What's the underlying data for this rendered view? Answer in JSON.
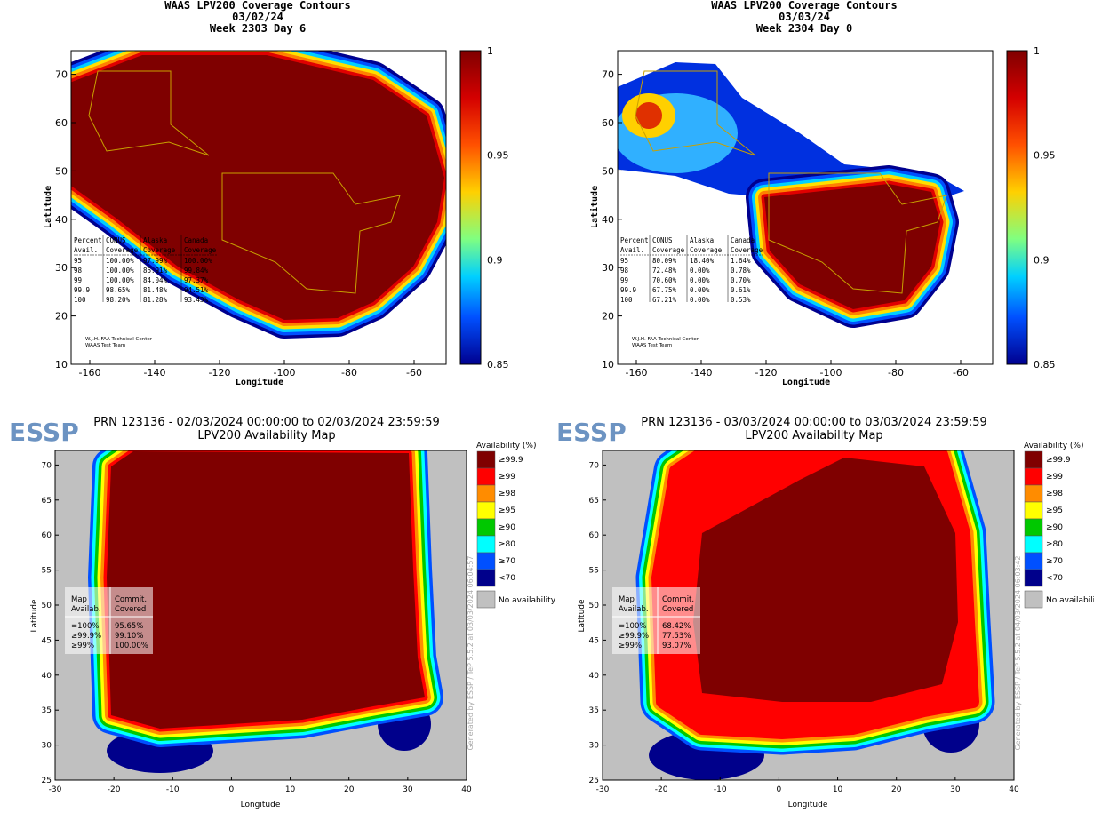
{
  "waas_panels": [
    {
      "title": [
        "WAAS LPV200 Coverage Contours",
        "03/02/24",
        "Week 2303 Day 6"
      ],
      "x_label": "Longitude",
      "y_label": "Latitude",
      "xticks": [
        "-160",
        "-140",
        "-120",
        "-100",
        "-80",
        "-60"
      ],
      "yticks": [
        "10",
        "20",
        "30",
        "40",
        "50",
        "60",
        "70"
      ],
      "colorbar_ticks": [
        "0.85",
        "0.9",
        "0.95",
        "1"
      ],
      "table": {
        "header": [
          [
            "Percent",
            "CONUS",
            "Alaska",
            "Canada"
          ],
          [
            "Avail.",
            "Coverage",
            "Coverage",
            "Coverage"
          ]
        ],
        "rows": [
          [
            "95",
            "100.00%",
            "97.99%",
            "100.00%"
          ],
          [
            "98",
            "100.00%",
            "86.91%",
            "99.84%"
          ],
          [
            "99",
            "100.00%",
            "84.04%",
            "97.37%"
          ],
          [
            "99.9",
            "98.65%",
            "81.48%",
            "94.51%"
          ],
          [
            "100",
            "98.20%",
            "81.28%",
            "93.43%"
          ]
        ]
      },
      "credit": [
        "W.J.H. FAA Technical Center",
        "WAAS Test Team"
      ]
    },
    {
      "title": [
        "WAAS LPV200 Coverage Contours",
        "03/03/24",
        "Week 2304 Day 0"
      ],
      "x_label": "Longitude",
      "y_label": "Latitude",
      "xticks": [
        "-160",
        "-140",
        "-120",
        "-100",
        "-80",
        "-60"
      ],
      "yticks": [
        "10",
        "20",
        "30",
        "40",
        "50",
        "60",
        "70"
      ],
      "colorbar_ticks": [
        "0.85",
        "0.9",
        "0.95",
        "1"
      ],
      "table": {
        "header": [
          [
            "Percent",
            "CONUS",
            "Alaska",
            "Canada"
          ],
          [
            "Avail.",
            "Coverage",
            "Coverage",
            "Coverage"
          ]
        ],
        "rows": [
          [
            "95",
            "80.09%",
            "18.40%",
            "1.64%"
          ],
          [
            "98",
            "72.48%",
            "0.00%",
            "0.78%"
          ],
          [
            "99",
            "70.60%",
            "0.00%",
            "0.70%"
          ],
          [
            "99.9",
            "67.75%",
            "0.00%",
            "0.61%"
          ],
          [
            "100",
            "67.21%",
            "0.00%",
            "0.53%"
          ]
        ]
      },
      "credit": [
        "W.J.H. FAA Technical Center",
        "WAAS Test Team"
      ]
    }
  ],
  "essp_panels": [
    {
      "logo": "ESSP",
      "title": [
        "PRN 123136 - 02/03/2024 00:00:00 to 02/03/2024 23:59:59",
        "LPV200 Availability Map"
      ],
      "x_label": "Longitude",
      "y_label": "Latitude",
      "xticks": [
        "-30",
        "-20",
        "-10",
        "0",
        "10",
        "20",
        "30",
        "40"
      ],
      "yticks": [
        "25",
        "30",
        "35",
        "40",
        "45",
        "50",
        "55",
        "60",
        "65",
        "70"
      ],
      "legend_title": "Availability (%)",
      "legend": [
        "≥99.9",
        "≥99",
        "≥98",
        "≥95",
        "≥90",
        "≥80",
        "≥70",
        "<70"
      ],
      "no_availability": "No availability",
      "table": {
        "header": [
          [
            "Map",
            "Availab."
          ],
          [
            "Commit.",
            "Covered"
          ]
        ],
        "rows": [
          [
            "=100%",
            "95.65%"
          ],
          [
            "≥99.9%",
            "99.10%"
          ],
          [
            "≥99%",
            "100.00%"
          ]
        ]
      },
      "generated": "Generated by ESSP / TeP 5.5.2 at 03/03/2024 06:04:57"
    },
    {
      "logo": "ESSP",
      "title": [
        "PRN 123136 - 03/03/2024 00:00:00 to 03/03/2024 23:59:59",
        "LPV200 Availability Map"
      ],
      "x_label": "Longitude",
      "y_label": "Latitude",
      "xticks": [
        "-30",
        "-20",
        "-10",
        "0",
        "10",
        "20",
        "30",
        "40"
      ],
      "yticks": [
        "25",
        "30",
        "35",
        "40",
        "45",
        "50",
        "55",
        "60",
        "65",
        "70"
      ],
      "legend_title": "Availability (%)",
      "legend": [
        "≥99.9",
        "≥99",
        "≥98",
        "≥95",
        "≥90",
        "≥80",
        "≥70",
        "<70"
      ],
      "no_availability": "No availability",
      "table": {
        "header": [
          [
            "Map",
            "Availab."
          ],
          [
            "Commit.",
            "Covered"
          ]
        ],
        "rows": [
          [
            "=100%",
            "68.42%"
          ],
          [
            "≥99.9%",
            "77.53%"
          ],
          [
            "≥99%",
            "93.07%"
          ]
        ]
      },
      "generated": "Generated by ESSP / TeP 5.5.2 at 04/03/2024 06:03:42"
    }
  ]
}
